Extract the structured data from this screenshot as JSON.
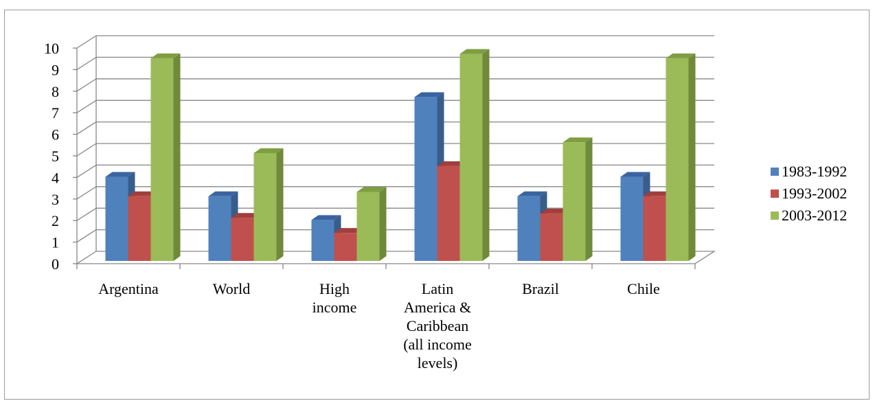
{
  "chart_data": {
    "type": "bar",
    "title": "",
    "xlabel": "",
    "ylabel": "",
    "ylim": [
      0,
      10
    ],
    "yticks": [
      "0",
      "1",
      "2",
      "3",
      "4",
      "5",
      "6",
      "7",
      "8",
      "9",
      "10"
    ],
    "categories": [
      [
        "Argentina"
      ],
      [
        "World"
      ],
      [
        "High",
        "income"
      ],
      [
        "Latin",
        "America &",
        "Caribbean",
        "(all income",
        "levels)"
      ],
      [
        "Brazil"
      ],
      [
        "Chile"
      ]
    ],
    "series": [
      {
        "name": "1983-1992",
        "color": "#4F81BD",
        "side": "#385D8A",
        "top": "#3A64A0",
        "values": [
          3.9,
          3.0,
          1.9,
          7.6,
          3.0,
          3.9
        ]
      },
      {
        "name": "1993-2002",
        "color": "#C0504D",
        "side": "#8C3836",
        "top": "#A03F3C",
        "values": [
          3.0,
          2.0,
          1.3,
          4.4,
          2.2,
          3.0
        ]
      },
      {
        "name": "2003-2012",
        "color": "#9BBB59",
        "side": "#6E8A3A",
        "top": "#7E9E42",
        "values": [
          9.4,
          5.0,
          3.2,
          9.6,
          5.5,
          9.4
        ]
      }
    ],
    "grid": true,
    "legend_position": "right"
  }
}
